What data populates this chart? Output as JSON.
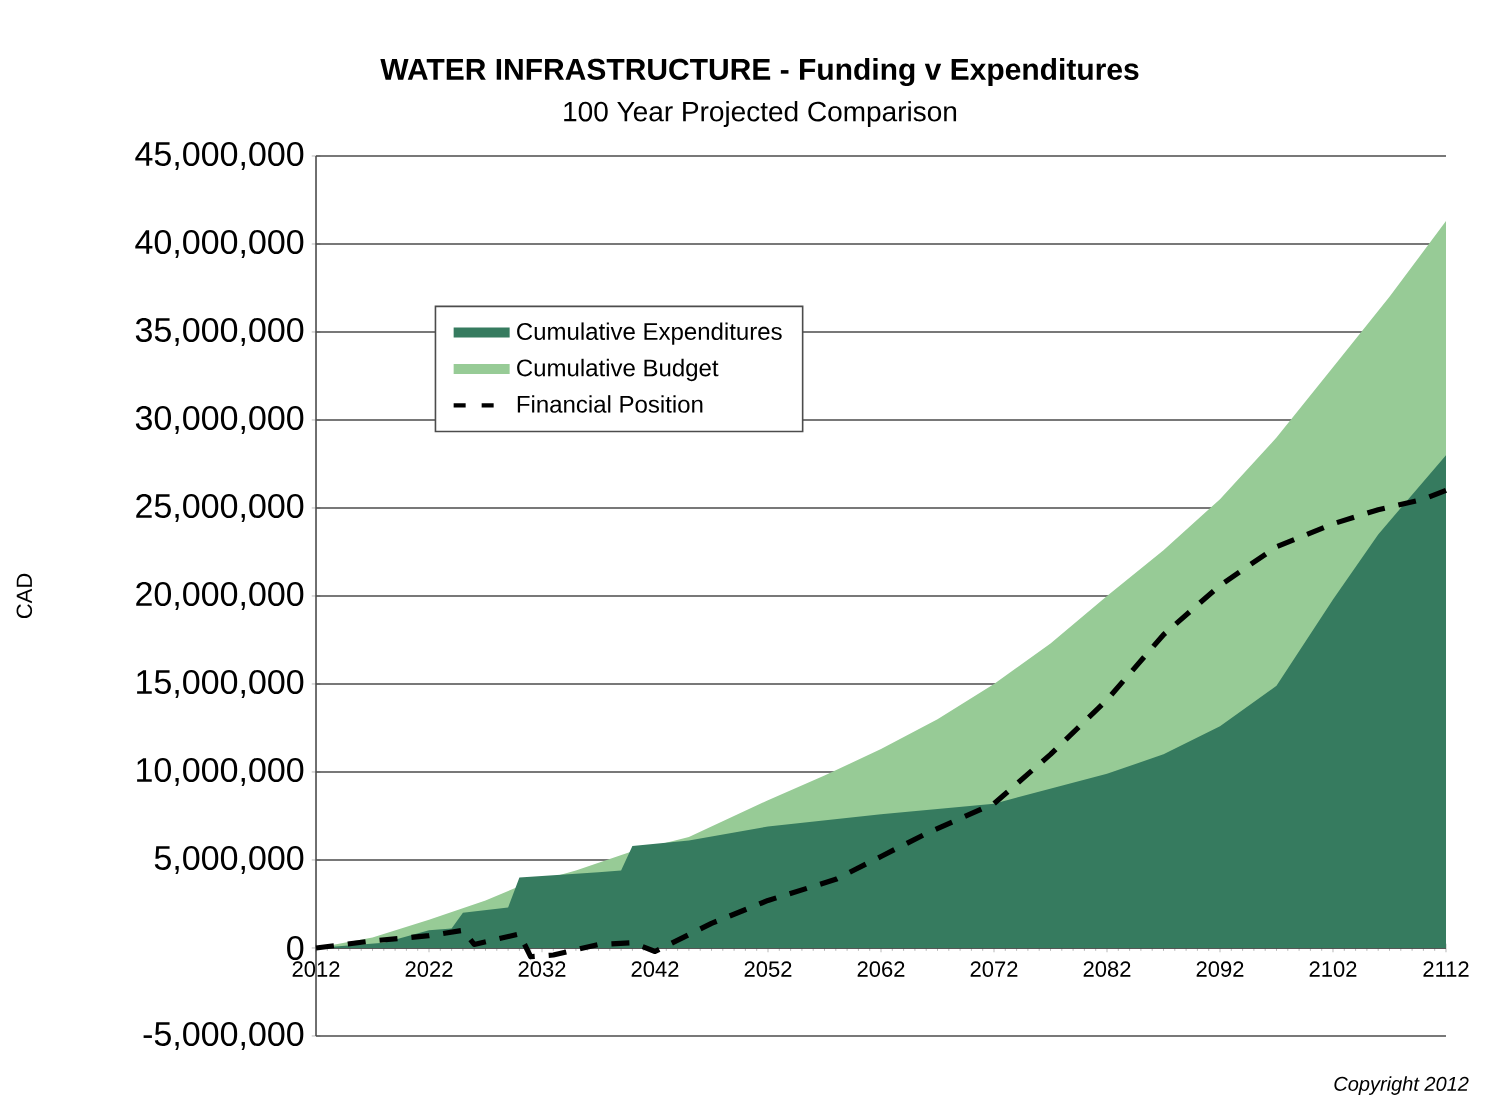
{
  "chart_data": {
    "type": "area",
    "title": "WATER INFRASTRUCTURE - Funding  v Expenditures",
    "subtitle": "100 Year Projected Comparison",
    "ylabel": "CAD",
    "annotations": [
      "Copyright 2012"
    ],
    "xlim": [
      2012,
      2112
    ],
    "xticks": [
      2012,
      2022,
      2032,
      2042,
      2052,
      2062,
      2072,
      2082,
      2092,
      2102,
      2112
    ],
    "ylim": [
      -5000000,
      45000000
    ],
    "yticks": [
      {
        "value": -5000000,
        "label": "-5,000,000"
      },
      {
        "value": 0,
        "label": "0"
      },
      {
        "value": 5000000,
        "label": "5,000,000"
      },
      {
        "value": 10000000,
        "label": "10,000,000"
      },
      {
        "value": 15000000,
        "label": "15,000,000"
      },
      {
        "value": 20000000,
        "label": "20,000,000"
      },
      {
        "value": 25000000,
        "label": "25,000,000"
      },
      {
        "value": 30000000,
        "label": "30,000,000"
      },
      {
        "value": 35000000,
        "label": "35,000,000"
      },
      {
        "value": 40000000,
        "label": "40,000,000"
      },
      {
        "value": 45000000,
        "label": "45,000,000"
      }
    ],
    "grid": "y",
    "legend": "top left",
    "series": [
      {
        "name": "Cumulative Expenditures",
        "color": "#367b5f",
        "x": [
          2012,
          2018,
          2022,
          2024,
          2025,
          2029,
          2030,
          2037,
          2039,
          2040,
          2045,
          2052,
          2062,
          2072,
          2082,
          2087,
          2092,
          2097,
          2102,
          2106,
          2112
        ],
        "values": [
          0,
          300000,
          1000000,
          1100000,
          2000000,
          2300000,
          4000000,
          4300000,
          4400000,
          5800000,
          6100000,
          6900000,
          7600000,
          8200000,
          9900000,
          11000000,
          12600000,
          14900000,
          19800000,
          23500000,
          28000000
        ]
      },
      {
        "name": "Cumulative Budget",
        "color": "#97cb96",
        "x": [
          2012,
          2017,
          2022,
          2027,
          2030,
          2035,
          2040,
          2045,
          2052,
          2057,
          2062,
          2067,
          2072,
          2077,
          2082,
          2087,
          2092,
          2097,
          2102,
          2107,
          2112
        ],
        "values": [
          0,
          600000,
          1600000,
          2700000,
          3500000,
          4400000,
          5500000,
          6300000,
          8400000,
          9800000,
          11300000,
          13000000,
          15000000,
          17300000,
          20000000,
          22600000,
          25500000,
          29000000,
          33000000,
          37000000,
          41300000
        ]
      },
      {
        "name": "Financial Position",
        "type": "line",
        "color": "#000000",
        "line_style": "dashed",
        "x": [
          2012,
          2017,
          2022,
          2025,
          2026,
          2028,
          2030,
          2031,
          2033,
          2037,
          2040,
          2042,
          2047,
          2052,
          2058,
          2062,
          2066,
          2072,
          2077,
          2082,
          2087,
          2092,
          2097,
          2102,
          2106,
          2110,
          2112
        ],
        "values": [
          0,
          400000,
          700000,
          1000000,
          200000,
          500000,
          800000,
          -500000,
          -400000,
          200000,
          300000,
          -200000,
          1400000,
          2700000,
          3900000,
          5200000,
          6500000,
          8200000,
          11000000,
          14100000,
          17800000,
          20600000,
          22800000,
          24100000,
          24900000,
          25500000,
          26000000
        ]
      }
    ]
  }
}
